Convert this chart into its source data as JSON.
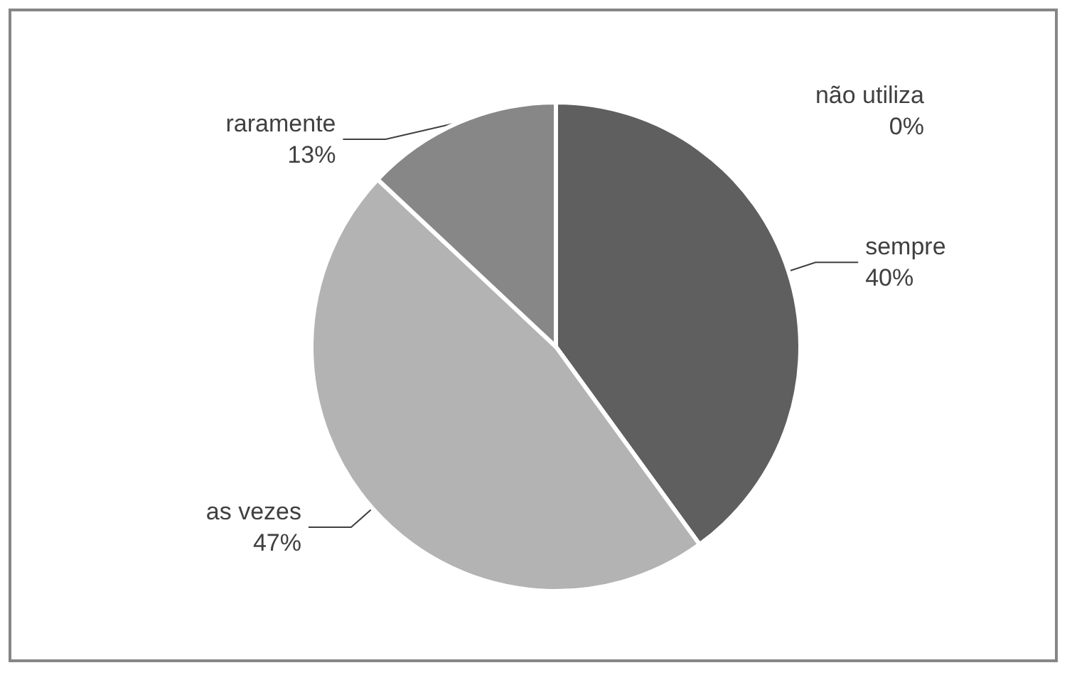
{
  "chart_data": {
    "type": "pie",
    "categories": [
      "sempre",
      "as vezes",
      "raramente",
      "não utiliza"
    ],
    "values": [
      40,
      47,
      13,
      0
    ],
    "colors": [
      "#5f5f5f",
      "#b3b3b3",
      "#878787",
      "#d9d9d9"
    ],
    "value_labels": [
      "40%",
      "47%",
      "13%",
      "0%"
    ],
    "legend": false
  }
}
